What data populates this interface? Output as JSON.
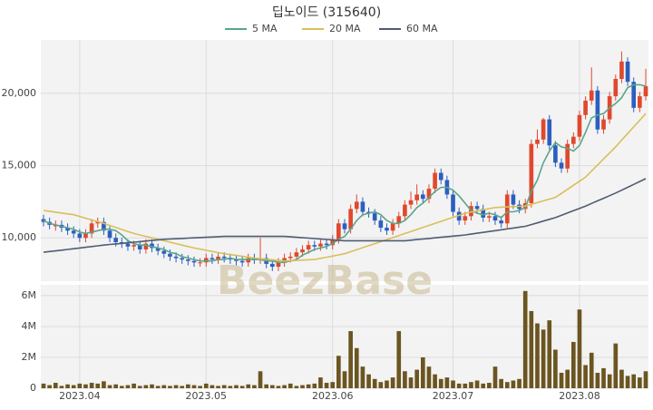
{
  "chart_data": [
    {
      "type": "candlestick",
      "title": "딥노이드 (315640)",
      "watermark": "BeezBase",
      "up_color": "#e0482d",
      "down_color": "#2b5fbf",
      "grid": true,
      "ylim": [
        7000,
        23700
      ],
      "yticks": [
        {
          "value": 10000,
          "label": "10,000"
        },
        {
          "value": 15000,
          "label": "15,000"
        },
        {
          "value": 20000,
          "label": "20,000"
        }
      ],
      "open": [
        11300,
        11100,
        10800,
        10900,
        10700,
        10500,
        10300,
        10000,
        10300,
        11000,
        11100,
        10500,
        10000,
        9700,
        9600,
        9400,
        9500,
        9200,
        9600,
        9300,
        9100,
        8900,
        8700,
        8600,
        8500,
        8400,
        8300,
        8300,
        8600,
        8500,
        8700,
        8600,
        8500,
        8400,
        8300,
        8600,
        8500,
        8600,
        8200,
        8000,
        8300,
        8600,
        8700,
        9000,
        9200,
        9500,
        9400,
        9600,
        9500,
        9900,
        11000,
        10600,
        12000,
        12500,
        11800,
        11700,
        11200,
        10700,
        10500,
        11000,
        11500,
        12300,
        12600,
        13000,
        12700,
        13400,
        14500,
        14000,
        13000,
        11800,
        11200,
        11500,
        12200,
        12000,
        11400,
        11500,
        11200,
        11000,
        13000,
        12300,
        12000,
        12400,
        16500,
        16800,
        18200,
        16400,
        15200,
        14800,
        16500,
        17000,
        18500,
        19500,
        20200,
        17500,
        18200,
        19800,
        21000,
        22200,
        20800,
        19000,
        19800
      ],
      "high": [
        11600,
        11400,
        11200,
        11200,
        11000,
        10800,
        10600,
        10600,
        11300,
        11400,
        11400,
        10800,
        10300,
        10000,
        9900,
        9800,
        9800,
        9900,
        9900,
        9600,
        9400,
        9200,
        9000,
        8900,
        8800,
        8700,
        8600,
        8900,
        8900,
        9000,
        9000,
        8900,
        8800,
        8700,
        8900,
        8900,
        10000,
        8900,
        8500,
        8600,
        8900,
        9000,
        9300,
        9500,
        9800,
        9800,
        9900,
        9900,
        10200,
        11300,
        11300,
        12300,
        13000,
        12800,
        12100,
        12000,
        11500,
        11000,
        11300,
        11800,
        12600,
        13200,
        13700,
        13300,
        13700,
        14800,
        14800,
        14300,
        13300,
        12100,
        11800,
        12500,
        12500,
        12300,
        11800,
        11800,
        11500,
        13300,
        13300,
        12600,
        12700,
        16800,
        17500,
        18300,
        18500,
        16700,
        15500,
        16800,
        17300,
        18800,
        19800,
        21800,
        20500,
        18500,
        20100,
        21300,
        22900,
        22500,
        21100,
        20100,
        21700
      ],
      "low": [
        10800,
        10600,
        10500,
        10400,
        10200,
        10000,
        9700,
        9700,
        10000,
        10700,
        10200,
        9700,
        9400,
        9300,
        9100,
        9100,
        8900,
        8900,
        9000,
        8800,
        8600,
        8400,
        8300,
        8200,
        8100,
        8000,
        8000,
        8000,
        8200,
        8200,
        8300,
        8200,
        8100,
        8000,
        8000,
        8200,
        8200,
        7900,
        7700,
        7700,
        8000,
        8300,
        8400,
        8700,
        8900,
        9100,
        9100,
        9200,
        9200,
        9600,
        10300,
        10300,
        11700,
        11500,
        11400,
        10900,
        10400,
        10200,
        10200,
        10700,
        11200,
        12000,
        12300,
        12400,
        12400,
        13100,
        13700,
        12700,
        11500,
        10900,
        10900,
        11200,
        11700,
        11100,
        11100,
        10900,
        10700,
        10700,
        12000,
        11700,
        11700,
        12100,
        16200,
        16500,
        16100,
        14900,
        14500,
        14500,
        16200,
        16700,
        18200,
        19200,
        17200,
        17200,
        17900,
        19500,
        20700,
        20500,
        18700,
        18700,
        19500
      ],
      "close": [
        11100,
        10900,
        10900,
        10700,
        10500,
        10300,
        10000,
        10300,
        11000,
        11100,
        10500,
        10000,
        9700,
        9600,
        9400,
        9500,
        9200,
        9600,
        9300,
        9100,
        8900,
        8700,
        8600,
        8500,
        8400,
        8300,
        8300,
        8600,
        8500,
        8700,
        8600,
        8500,
        8400,
        8300,
        8600,
        8500,
        8600,
        8200,
        8000,
        8300,
        8600,
        8700,
        9000,
        9200,
        9500,
        9400,
        9600,
        9500,
        9900,
        11000,
        10600,
        12000,
        12500,
        11800,
        11700,
        11200,
        10700,
        10500,
        11000,
        11500,
        12300,
        12600,
        13000,
        12700,
        13400,
        14500,
        14000,
        13000,
        11800,
        11200,
        11500,
        12200,
        12000,
        11400,
        11500,
        11200,
        11000,
        13000,
        12300,
        12000,
        12400,
        16500,
        16800,
        18200,
        16400,
        15200,
        14800,
        16500,
        17000,
        18500,
        19500,
        20200,
        17500,
        18200,
        19800,
        21000,
        22200,
        20800,
        19000,
        19800,
        20500
      ],
      "series": [
        {
          "name": "5 MA",
          "color": "#5aa58a",
          "values": [
            11200,
            11000,
            10900,
            10800,
            10700,
            10600,
            10400,
            10300,
            10400,
            10500,
            10600,
            10600,
            10500,
            10200,
            9800,
            9600,
            9500,
            9500,
            9400,
            9300,
            9200,
            9000,
            8900,
            8700,
            8600,
            8500,
            8400,
            8400,
            8400,
            8500,
            8500,
            8600,
            8500,
            8500,
            8500,
            8500,
            8500,
            8400,
            8400,
            8300,
            8300,
            8400,
            8500,
            8800,
            9000,
            9200,
            9300,
            9400,
            9600,
            9900,
            10100,
            10600,
            11200,
            11600,
            11700,
            11800,
            11600,
            11200,
            11000,
            11000,
            11200,
            11600,
            12100,
            12400,
            12800,
            13200,
            13500,
            13500,
            13300,
            12900,
            12400,
            11900,
            11700,
            11600,
            11700,
            11600,
            11400,
            11800,
            11800,
            11900,
            12100,
            13200,
            14000,
            15200,
            16000,
            16600,
            16300,
            16200,
            16000,
            16400,
            17300,
            18300,
            18500,
            18600,
            19000,
            19300,
            19700,
            20400,
            20600,
            20600,
            20500
          ]
        },
        {
          "name": "20 MA",
          "color": "#d9bf5a",
          "values": [
            11900,
            11840,
            11780,
            11720,
            11660,
            11600,
            11480,
            11360,
            11240,
            11120,
            11000,
            10860,
            10720,
            10580,
            10440,
            10300,
            10200,
            10100,
            10000,
            9900,
            9800,
            9700,
            9600,
            9500,
            9400,
            9300,
            9220,
            9140,
            9060,
            8980,
            8900,
            8840,
            8780,
            8720,
            8660,
            8600,
            8560,
            8520,
            8480,
            8440,
            8400,
            8420,
            8440,
            8460,
            8480,
            8500,
            8580,
            8660,
            8740,
            8820,
            8900,
            9040,
            9180,
            9320,
            9460,
            9600,
            9740,
            9880,
            10020,
            10160,
            10300,
            10440,
            10580,
            10720,
            10860,
            11000,
            11140,
            11280,
            11420,
            11560,
            11700,
            11780,
            11860,
            11940,
            12020,
            12100,
            12120,
            12140,
            12160,
            12180,
            12200,
            12320,
            12440,
            12560,
            12680,
            12800,
            13080,
            13360,
            13640,
            13920,
            14200,
            14620,
            15040,
            15460,
            15880,
            16300,
            16760,
            17220,
            17680,
            18140,
            18600
          ]
        },
        {
          "name": "60 MA",
          "color": "#4f5d73",
          "values": [
            9000,
            9050,
            9100,
            9150,
            9200,
            9250,
            9300,
            9350,
            9400,
            9450,
            9500,
            9540,
            9580,
            9620,
            9660,
            9700,
            9740,
            9780,
            9820,
            9860,
            9900,
            9920,
            9940,
            9960,
            9980,
            10000,
            10020,
            10040,
            10060,
            10080,
            10100,
            10100,
            10100,
            10100,
            10100,
            10100,
            10100,
            10100,
            10100,
            10100,
            10100,
            10070,
            10040,
            10010,
            9980,
            9950,
            9920,
            9890,
            9860,
            9830,
            9800,
            9800,
            9800,
            9800,
            9800,
            9800,
            9800,
            9800,
            9800,
            9800,
            9800,
            9840,
            9880,
            9920,
            9960,
            10000,
            10040,
            10080,
            10120,
            10160,
            10200,
            10260,
            10320,
            10380,
            10440,
            10500,
            10560,
            10620,
            10680,
            10740,
            10800,
            10920,
            11040,
            11160,
            11280,
            11400,
            11560,
            11720,
            11880,
            12040,
            12200,
            12380,
            12560,
            12740,
            12920,
            13100,
            13300,
            13500,
            13700,
            13900,
            14100
          ]
        }
      ]
    },
    {
      "type": "bar",
      "color": "#6b5520",
      "grid": true,
      "ylim": [
        0,
        6700000
      ],
      "yticks": [
        0,
        {
          "value": 2000000,
          "label": "2M"
        },
        {
          "value": 4000000,
          "label": "4M"
        },
        {
          "value": 6000000,
          "label": "6M"
        }
      ],
      "categories": [
        null,
        null,
        null,
        null,
        null,
        null,
        "2023.04",
        null,
        null,
        null,
        null,
        null,
        null,
        null,
        null,
        null,
        null,
        null,
        null,
        null,
        null,
        null,
        null,
        null,
        null,
        null,
        null,
        "2023.05",
        null,
        null,
        null,
        null,
        null,
        null,
        null,
        null,
        null,
        null,
        null,
        null,
        null,
        null,
        null,
        null,
        null,
        null,
        null,
        null,
        "2023.06",
        null,
        null,
        null,
        null,
        null,
        null,
        null,
        null,
        null,
        null,
        null,
        null,
        null,
        null,
        null,
        null,
        null,
        null,
        null,
        "2023.07",
        null,
        null,
        null,
        null,
        null,
        null,
        null,
        null,
        null,
        null,
        null,
        null,
        null,
        null,
        null,
        null,
        null,
        null,
        null,
        null,
        "2023.08",
        null,
        null,
        null,
        null,
        null,
        null,
        null,
        null,
        null,
        null,
        null
      ],
      "values": [
        300000,
        200000,
        350000,
        150000,
        250000,
        200000,
        300000,
        250000,
        350000,
        300000,
        450000,
        200000,
        250000,
        150000,
        200000,
        300000,
        150000,
        200000,
        250000,
        150000,
        200000,
        150000,
        200000,
        150000,
        250000,
        200000,
        150000,
        300000,
        200000,
        150000,
        200000,
        150000,
        200000,
        150000,
        250000,
        200000,
        1100000,
        250000,
        200000,
        150000,
        200000,
        300000,
        150000,
        200000,
        250000,
        300000,
        700000,
        350000,
        400000,
        2100000,
        1100000,
        3700000,
        2600000,
        1400000,
        900000,
        600000,
        400000,
        500000,
        700000,
        3700000,
        1100000,
        700000,
        1200000,
        2000000,
        1400000,
        900000,
        600000,
        700000,
        500000,
        300000,
        300000,
        400000,
        500000,
        300000,
        350000,
        1400000,
        600000,
        400000,
        500000,
        600000,
        6300000,
        5000000,
        4200000,
        3800000,
        4400000,
        2500000,
        1000000,
        1200000,
        3000000,
        5100000,
        1500000,
        2300000,
        1000000,
        1300000,
        900000,
        2900000,
        1200000,
        800000,
        900000,
        700000,
        1100000
      ]
    }
  ]
}
